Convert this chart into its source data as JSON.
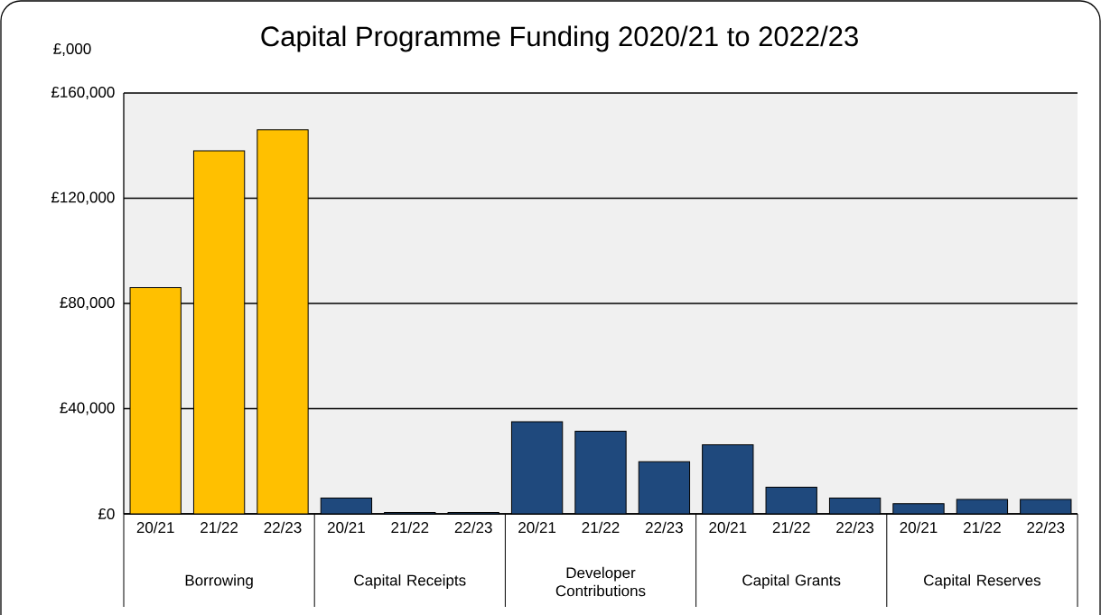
{
  "chart_data": {
    "type": "bar",
    "title": "Capital Programme Funding 2020/21 to 2022/23",
    "ylabel": "£,000",
    "categories": [
      "20/21",
      "21/22",
      "22/23",
      "20/21",
      "21/22",
      "22/23",
      "20/21",
      "21/22",
      "22/23",
      "20/21",
      "21/22",
      "22/23",
      "20/21",
      "21/22",
      "22/23"
    ],
    "values": [
      86000,
      138000,
      146000,
      6000,
      500,
      500,
      35000,
      31400,
      19800,
      26300,
      10100,
      6000,
      3900,
      5500,
      5500
    ],
    "colors": [
      "#ffc000",
      "#ffc000",
      "#ffc000",
      "#1f497d",
      "#1f497d",
      "#1f497d",
      "#1f497d",
      "#1f497d",
      "#1f497d",
      "#1f497d",
      "#1f497d",
      "#1f497d",
      "#1f497d",
      "#1f497d",
      "#1f497d"
    ],
    "ylim": [
      0,
      160000
    ],
    "yticks": [
      {
        "value": 0,
        "label": "£0"
      },
      {
        "value": 40000,
        "label": "£40,000"
      },
      {
        "value": 80000,
        "label": "£80,000"
      },
      {
        "value": 120000,
        "label": "£120,000"
      },
      {
        "value": 160000,
        "label": "£160,000"
      }
    ],
    "grid": "y",
    "annotations": [
      "Borrowing",
      "Capital Receipts",
      "Developer Contributions",
      "Capital Grants",
      "Capital Reserves"
    ]
  }
}
